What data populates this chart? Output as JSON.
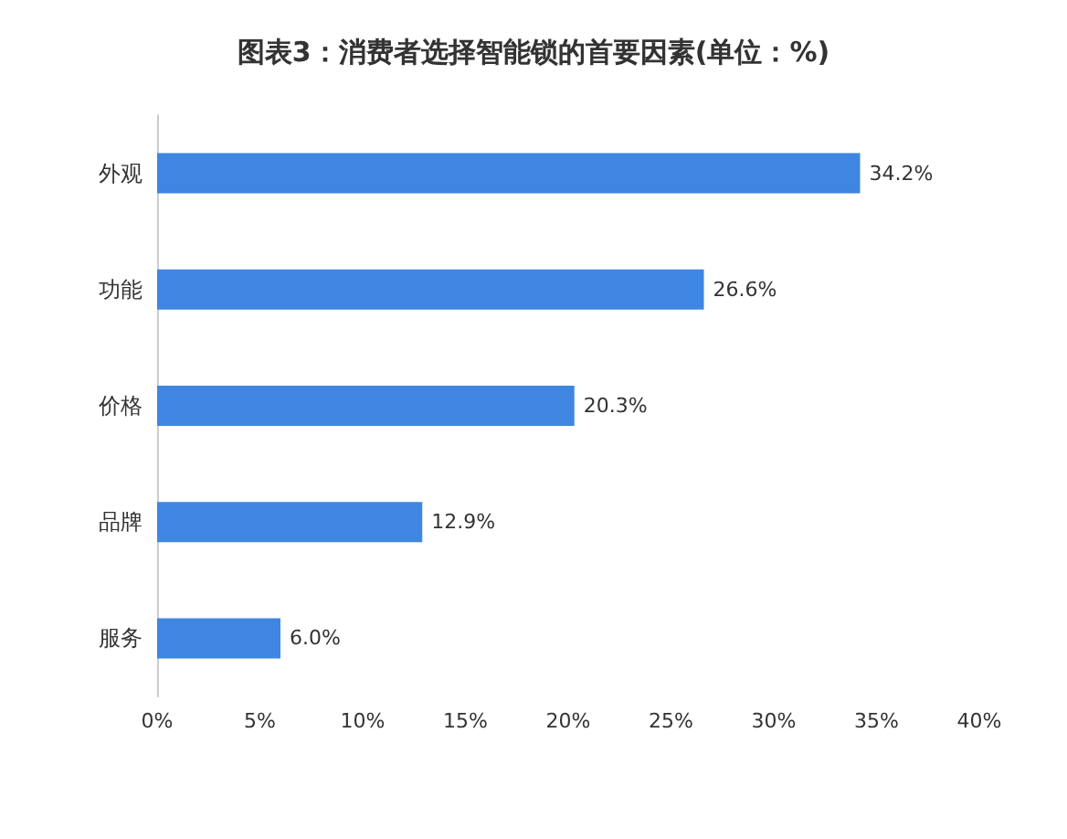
{
  "chart_data": {
    "type": "bar",
    "orientation": "horizontal",
    "title": "图表3：消费者选择智能锁的首要因素(单位：%)",
    "categories": [
      "外观",
      "功能",
      "价格",
      "品牌",
      "服务"
    ],
    "values": [
      34.2,
      26.6,
      20.3,
      12.9,
      6.0
    ],
    "value_labels": [
      "34.2%",
      "26.6%",
      "20.3%",
      "12.9%",
      "6.0%"
    ],
    "color": "#3f86e2",
    "xlim": [
      0,
      40
    ],
    "xticks": [
      {
        "value": 0,
        "label": "0%"
      },
      {
        "value": 5,
        "label": "5%"
      },
      {
        "value": 10,
        "label": "10%"
      },
      {
        "value": 15,
        "label": "15%"
      },
      {
        "value": 20,
        "label": "20%"
      },
      {
        "value": 25,
        "label": "25%"
      },
      {
        "value": 30,
        "label": "30%"
      },
      {
        "value": 35,
        "label": "35%"
      },
      {
        "value": 40,
        "label": "40%"
      }
    ],
    "grid": false
  }
}
